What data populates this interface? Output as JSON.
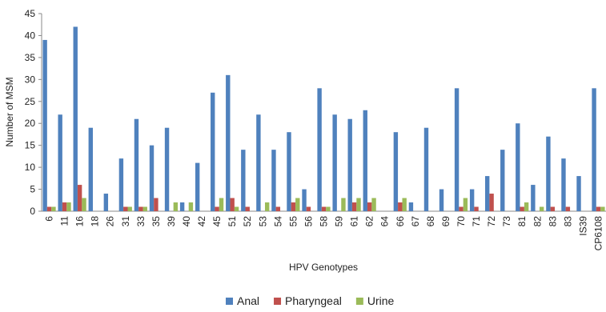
{
  "chart_data": {
    "type": "bar",
    "x_label": "HPV Genotypes",
    "y_label": "Number of MSM",
    "categories": [
      "6",
      "11",
      "16",
      "18",
      "26",
      "31",
      "33",
      "35",
      "39",
      "40",
      "42",
      "45",
      "51",
      "52",
      "53",
      "54",
      "55",
      "56",
      "58",
      "59",
      "61",
      "62",
      "64",
      "66",
      "67",
      "68",
      "69",
      "70",
      "71",
      "72",
      "73",
      "81",
      "82",
      "83",
      "83",
      "IS39",
      "CP6108"
    ],
    "series": [
      {
        "name": "Anal",
        "color": "#4f81bd",
        "values": [
          39,
          22,
          42,
          19,
          4,
          12,
          21,
          15,
          19,
          2,
          11,
          27,
          31,
          14,
          22,
          14,
          18,
          5,
          28,
          22,
          21,
          23,
          0,
          18,
          2,
          19,
          5,
          28,
          5,
          8,
          14,
          20,
          6,
          17,
          12,
          8,
          28
        ]
      },
      {
        "name": "Pharyngeal",
        "color": "#c0504d",
        "values": [
          1,
          2,
          6,
          0,
          0,
          1,
          1,
          3,
          0,
          0,
          0,
          1,
          3,
          1,
          0,
          1,
          2,
          1,
          1,
          0,
          2,
          2,
          0,
          2,
          0,
          0,
          0,
          1,
          1,
          4,
          0,
          1,
          0,
          1,
          1,
          0,
          1
        ]
      },
      {
        "name": "Urine",
        "color": "#9bbb59",
        "values": [
          1,
          2,
          3,
          0,
          0,
          1,
          1,
          0,
          2,
          2,
          0,
          3,
          1,
          0,
          2,
          0,
          3,
          0,
          1,
          3,
          3,
          3,
          0,
          3,
          0,
          0,
          0,
          3,
          0,
          0,
          0,
          2,
          1,
          0,
          0,
          0,
          1
        ]
      }
    ],
    "ylim": [
      0,
      45
    ],
    "yticks": [
      0,
      5,
      10,
      15,
      20,
      25,
      30,
      35,
      40,
      45
    ],
    "grid": false,
    "legend": "bottom"
  }
}
